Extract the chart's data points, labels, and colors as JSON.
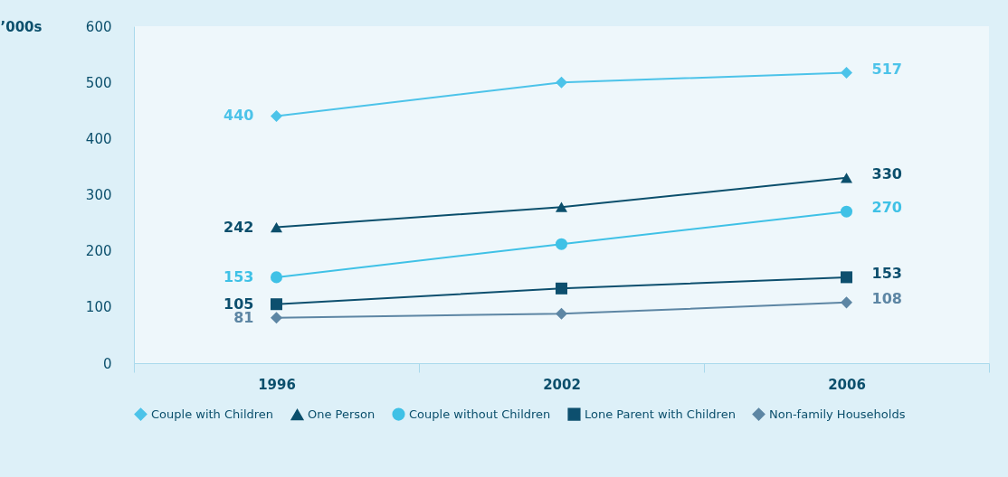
{
  "chart_data": {
    "type": "line",
    "ylabel": "’000s",
    "categories": [
      "1996",
      "2002",
      "2006"
    ],
    "ylim": [
      0,
      600
    ],
    "yticks": [
      0,
      100,
      200,
      300,
      400,
      500,
      600
    ],
    "grid": false,
    "legend": "bottom",
    "series": [
      {
        "name": "Couple with Children",
        "color": "#4cc3e9",
        "marker": "diamond",
        "values": [
          440,
          500,
          517
        ],
        "value_labels": [
          "440",
          null,
          "517"
        ]
      },
      {
        "name": "One Person",
        "color": "#0b4f6c",
        "marker": "triangle",
        "values": [
          242,
          278,
          330
        ],
        "value_labels": [
          "242",
          null,
          "330"
        ]
      },
      {
        "name": "Couple without Children",
        "color": "#3fc1e6",
        "marker": "circle",
        "values": [
          153,
          212,
          270
        ],
        "value_labels": [
          "153",
          null,
          "270"
        ]
      },
      {
        "name": "Lone Parent with Children",
        "color": "#0d4f6e",
        "marker": "square",
        "values": [
          105,
          133,
          153
        ],
        "value_labels": [
          "105",
          null,
          "153"
        ]
      },
      {
        "name": "Non-family Households",
        "color": "#5d86a4",
        "marker": "diamond",
        "values": [
          81,
          88,
          108
        ],
        "value_labels": [
          "81",
          null,
          "108"
        ]
      }
    ]
  }
}
